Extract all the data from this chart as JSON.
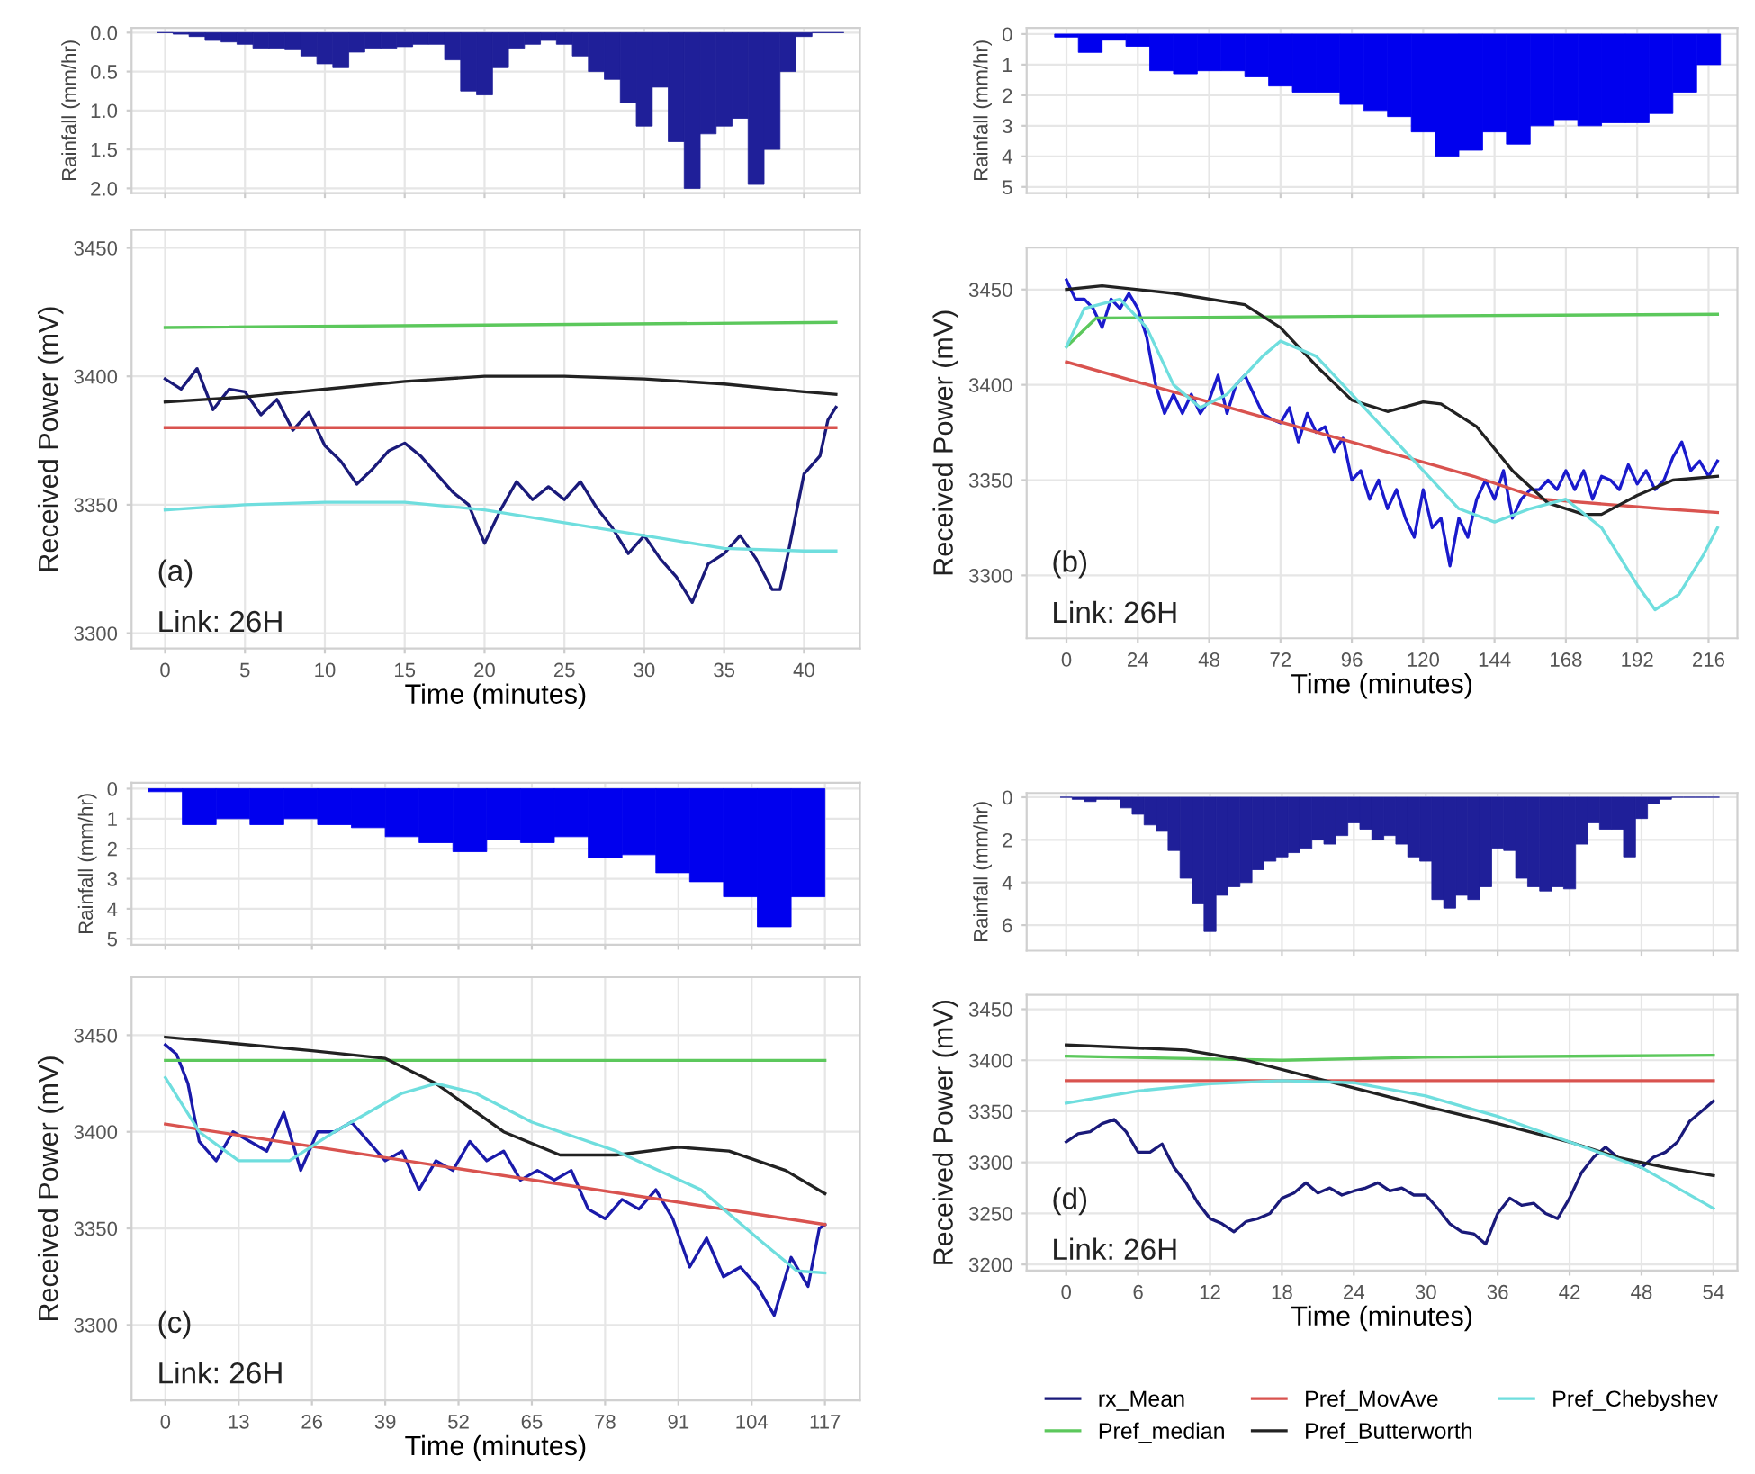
{
  "chart_data": [
    {
      "type": "bar",
      "ylabel": "Rainfall (mm/hr)",
      "x": [
        0,
        1,
        2,
        3,
        4,
        5,
        6,
        7,
        8,
        9,
        10,
        11,
        12,
        13,
        14,
        15,
        16,
        17,
        18,
        19,
        20,
        21,
        22,
        23,
        24,
        25,
        26,
        27,
        28,
        29,
        30,
        31,
        32,
        33,
        34,
        35,
        36,
        37,
        38,
        39,
        40,
        41,
        42
      ],
      "values": [
        0,
        0.02,
        0.05,
        0.1,
        0.12,
        0.15,
        0.2,
        0.2,
        0.22,
        0.3,
        0.4,
        0.45,
        0.25,
        0.2,
        0.2,
        0.18,
        0.15,
        0.15,
        0.35,
        0.75,
        0.8,
        0.45,
        0.2,
        0.15,
        0.1,
        0.15,
        0.3,
        0.5,
        0.6,
        0.9,
        1.2,
        0.7,
        1.4,
        2.0,
        1.3,
        1.2,
        1.1,
        1.95,
        1.5,
        0.5,
        0.05,
        0,
        0
      ],
      "color": "#1f1f99",
      "xlim": [
        -2.1,
        43.5
      ],
      "xticks": [
        0,
        5,
        10,
        15,
        20,
        25,
        30,
        35,
        40
      ],
      "ylim": [
        2.06,
        -0.06
      ],
      "yticks": [
        {
          "value": 0,
          "label": "0.0"
        },
        {
          "value": 0.5,
          "label": "0.5"
        },
        {
          "value": 1,
          "label": "1.0"
        },
        {
          "value": 1.5,
          "label": "1.5"
        },
        {
          "value": 2,
          "label": "2.0"
        }
      ],
      "tick_labels": "y",
      "grid": true
    },
    {
      "type": "line",
      "xlabel": "Time (minutes)",
      "ylabel": "Received Power (mV)",
      "annotations": [
        "(a)",
        "Link: 26H"
      ],
      "xlim": [
        -2.1,
        43.5
      ],
      "xticks": [
        0,
        5,
        10,
        15,
        20,
        25,
        30,
        35,
        40
      ],
      "ylim": [
        3294,
        3457
      ],
      "yticks": [
        3300,
        3350,
        3400,
        3450
      ],
      "grid": true,
      "series": [
        {
          "color": "#1a1a7a",
          "x": [
            0,
            1,
            2,
            3,
            4,
            5,
            6,
            7,
            8,
            9,
            10,
            11,
            12,
            13,
            14,
            15,
            16,
            17,
            18,
            19,
            20,
            21,
            22,
            23,
            24,
            25,
            26,
            27,
            28,
            29,
            30,
            31,
            32,
            33,
            34,
            35,
            36,
            37,
            38,
            38.5,
            39,
            40,
            41,
            41.5,
            42
          ],
          "values": [
            3399,
            3395,
            3403,
            3387,
            3395,
            3394,
            3385,
            3391,
            3379,
            3386,
            3373,
            3367,
            3358,
            3364,
            3371,
            3374,
            3369,
            3362,
            3355,
            3350,
            3335,
            3348,
            3359,
            3352,
            3357,
            3352,
            3359,
            3349,
            3341,
            3331,
            3338,
            3329,
            3322,
            3312,
            3327,
            3331,
            3338,
            3329,
            3317,
            3317,
            3331,
            3362,
            3369,
            3383,
            3388
          ]
        },
        {
          "color": "#5cc85c",
          "x": [
            0,
            42
          ],
          "values": [
            3419,
            3421
          ]
        },
        {
          "color": "#d9534f",
          "x": [
            0,
            42
          ],
          "values": [
            3380,
            3380
          ]
        },
        {
          "color": "#222222",
          "x": [
            0,
            5,
            10,
            15,
            20,
            25,
            30,
            35,
            40,
            42
          ],
          "values": [
            3390,
            3392,
            3395,
            3398,
            3400,
            3400,
            3399,
            3397,
            3394,
            3393
          ]
        },
        {
          "color": "#6fdede",
          "x": [
            0,
            5,
            10,
            15,
            20,
            25,
            30,
            35,
            40,
            42
          ],
          "values": [
            3348,
            3350,
            3351,
            3351,
            3348,
            3343,
            3338,
            3333,
            3332,
            3332
          ]
        }
      ]
    },
    {
      "type": "bar",
      "ylabel": "Rainfall (mm/hr)",
      "x": [
        0,
        8,
        16,
        24,
        32,
        40,
        48,
        56,
        64,
        72,
        80,
        88,
        96,
        104,
        112,
        120,
        128,
        136,
        144,
        152,
        160,
        168,
        176,
        184,
        192,
        200,
        208,
        216
      ],
      "values": [
        0.1,
        0.6,
        0.2,
        0.4,
        1.2,
        1.3,
        1.2,
        1.2,
        1.4,
        1.7,
        1.9,
        1.9,
        2.3,
        2.5,
        2.7,
        3.2,
        4.0,
        3.8,
        3.2,
        3.6,
        3.0,
        2.8,
        3.0,
        2.9,
        2.9,
        2.6,
        1.9,
        1.0
      ],
      "color": "#0000ee",
      "xlim": [
        -13.4,
        225.7
      ],
      "xticks": [
        0,
        24,
        48,
        72,
        96,
        120,
        144,
        168,
        192,
        216
      ],
      "ylim": [
        5.2,
        -0.2
      ],
      "yticks": [
        0,
        1,
        2,
        3,
        4,
        5
      ],
      "tick_labels": "y",
      "grid": true
    },
    {
      "type": "line",
      "xlabel": "Time (minutes)",
      "ylabel": "Received Power (mV)",
      "annotations": [
        "(b)",
        "Link: 26H"
      ],
      "xlim": [
        -13.4,
        225.7
      ],
      "xticks": [
        0,
        24,
        48,
        72,
        96,
        120,
        144,
        168,
        192,
        216
      ],
      "ylim": [
        3267,
        3472
      ],
      "yticks": [
        3300,
        3350,
        3400,
        3450
      ],
      "grid": true,
      "series": [
        {
          "color": "#1a1acc",
          "x": [
            0,
            3,
            6,
            9,
            12,
            15,
            18,
            21,
            24,
            27,
            30,
            33,
            36,
            39,
            42,
            45,
            48,
            51,
            54,
            57,
            60,
            63,
            66,
            69,
            72,
            75,
            78,
            81,
            84,
            87,
            90,
            93,
            96,
            99,
            102,
            105,
            108,
            111,
            114,
            117,
            120,
            123,
            126,
            129,
            132,
            135,
            138,
            141,
            144,
            147,
            150,
            153,
            156,
            159,
            162,
            165,
            168,
            171,
            174,
            177,
            180,
            183,
            186,
            189,
            192,
            195,
            198,
            201,
            204,
            207,
            210,
            213,
            216,
            219
          ],
          "values": [
            3455,
            3445,
            3445,
            3440,
            3430,
            3445,
            3440,
            3448,
            3440,
            3425,
            3400,
            3385,
            3395,
            3385,
            3395,
            3385,
            3392,
            3405,
            3385,
            3400,
            3405,
            3395,
            3385,
            3382,
            3380,
            3388,
            3370,
            3385,
            3375,
            3378,
            3365,
            3372,
            3350,
            3355,
            3340,
            3350,
            3335,
            3345,
            3330,
            3320,
            3345,
            3325,
            3330,
            3305,
            3330,
            3320,
            3340,
            3350,
            3340,
            3355,
            3330,
            3340,
            3345,
            3345,
            3350,
            3345,
            3355,
            3345,
            3355,
            3340,
            3352,
            3350,
            3345,
            3358,
            3348,
            3355,
            3345,
            3350,
            3362,
            3370,
            3355,
            3360,
            3352,
            3360
          ]
        },
        {
          "color": "#5cc85c",
          "x": [
            0,
            10,
            100,
            219
          ],
          "values": [
            3420,
            3435,
            3436,
            3437
          ]
        },
        {
          "color": "#d9534f",
          "x": [
            0,
            137,
            160,
            200,
            219
          ],
          "values": [
            3412,
            3352,
            3340,
            3335,
            3333
          ]
        },
        {
          "color": "#222222",
          "x": [
            0,
            12,
            36,
            60,
            72,
            84,
            96,
            108,
            120,
            126,
            138,
            150,
            162,
            174,
            180,
            192,
            204,
            219
          ],
          "values": [
            3450,
            3452,
            3448,
            3442,
            3430,
            3410,
            3392,
            3386,
            3391,
            3390,
            3378,
            3355,
            3338,
            3332,
            3332,
            3342,
            3350,
            3352
          ]
        },
        {
          "color": "#6fdede",
          "x": [
            0,
            6,
            18,
            27,
            36,
            45,
            54,
            66,
            72,
            84,
            96,
            108,
            120,
            132,
            144,
            156,
            168,
            180,
            192,
            198,
            206,
            214,
            219
          ],
          "values": [
            3420,
            3440,
            3445,
            3430,
            3400,
            3388,
            3395,
            3415,
            3423,
            3415,
            3395,
            3375,
            3355,
            3335,
            3328,
            3335,
            3340,
            3325,
            3295,
            3282,
            3290,
            3310,
            3325
          ]
        }
      ]
    },
    {
      "type": "bar",
      "ylabel": "Rainfall (mm/hr)",
      "x": [
        0,
        6,
        12,
        18,
        24,
        30,
        36,
        42,
        48,
        54,
        60,
        66,
        72,
        78,
        84,
        90,
        96,
        102,
        108,
        114
      ],
      "values": [
        0.1,
        1.2,
        1.0,
        1.2,
        1.0,
        1.2,
        1.3,
        1.6,
        1.8,
        2.1,
        1.7,
        1.8,
        1.6,
        2.3,
        2.2,
        2.8,
        3.1,
        3.6,
        4.6,
        3.6
      ],
      "color": "#0000ee",
      "xlim": [
        -6,
        123.2
      ],
      "xticks": [
        0,
        13,
        26,
        39,
        52,
        65,
        78,
        91,
        104,
        117
      ],
      "ylim": [
        5.2,
        -0.2
      ],
      "yticks": [
        0,
        1,
        2,
        3,
        4,
        5
      ],
      "tick_labels": "y",
      "grid": true
    },
    {
      "type": "line",
      "xlabel": "Time (minutes)",
      "ylabel": "Received Power (mV)",
      "annotations": [
        "(c)",
        "Link: 26H"
      ],
      "xlim": [
        -6,
        123.2
      ],
      "xticks": [
        0,
        13,
        26,
        39,
        52,
        65,
        78,
        91,
        104,
        117
      ],
      "ylim": [
        3261,
        3480
      ],
      "yticks": [
        3300,
        3350,
        3400,
        3450
      ],
      "grid": true,
      "series": [
        {
          "color": "#1a1aaa",
          "x": [
            0,
            2,
            4,
            6,
            9,
            12,
            15,
            18,
            21,
            24,
            27,
            30,
            33,
            36,
            39,
            42,
            45,
            48,
            51,
            54,
            57,
            60,
            63,
            66,
            69,
            72,
            75,
            78,
            81,
            84,
            87,
            90,
            93,
            96,
            99,
            102,
            105,
            108,
            111,
            114,
            116,
            117
          ],
          "values": [
            3445,
            3440,
            3425,
            3395,
            3385,
            3400,
            3395,
            3390,
            3410,
            3380,
            3400,
            3400,
            3405,
            3395,
            3385,
            3390,
            3370,
            3385,
            3380,
            3395,
            3385,
            3390,
            3375,
            3380,
            3375,
            3380,
            3360,
            3355,
            3365,
            3360,
            3370,
            3355,
            3330,
            3345,
            3325,
            3330,
            3320,
            3305,
            3335,
            3320,
            3350,
            3352
          ]
        },
        {
          "color": "#5cc85c",
          "x": [
            0,
            117
          ],
          "values": [
            3437,
            3437
          ]
        },
        {
          "color": "#d9534f",
          "x": [
            0,
            117
          ],
          "values": [
            3404,
            3352
          ]
        },
        {
          "color": "#222222",
          "x": [
            0,
            26,
            39,
            48,
            60,
            70,
            80,
            91,
            100,
            110,
            117
          ],
          "values": [
            3449,
            3442,
            3438,
            3425,
            3400,
            3388,
            3388,
            3392,
            3390,
            3380,
            3368
          ]
        },
        {
          "color": "#6fdede",
          "x": [
            0,
            6,
            13,
            22,
            30,
            42,
            48,
            55,
            65,
            80,
            95,
            105,
            112,
            117
          ],
          "values": [
            3428,
            3400,
            3385,
            3385,
            3400,
            3420,
            3425,
            3420,
            3405,
            3390,
            3370,
            3345,
            3328,
            3327
          ]
        }
      ]
    },
    {
      "type": "bar",
      "ylabel": "Rainfall (mm/hr)",
      "x": [
        0,
        1,
        2,
        3,
        4,
        5,
        6,
        7,
        8,
        9,
        10,
        11,
        12,
        13,
        14,
        15,
        16,
        17,
        18,
        19,
        20,
        21,
        22,
        23,
        24,
        25,
        26,
        27,
        28,
        29,
        30,
        31,
        32,
        33,
        34,
        35,
        36,
        37,
        38,
        39,
        40,
        41,
        42,
        43,
        44,
        45,
        46,
        47,
        48,
        49,
        50,
        51,
        52,
        53,
        54
      ],
      "values": [
        0,
        0.1,
        0.2,
        0.1,
        0.1,
        0.5,
        0.8,
        1.3,
        1.6,
        2.5,
        3.8,
        5.0,
        6.3,
        4.6,
        4.2,
        4.0,
        3.4,
        3.0,
        2.8,
        2.6,
        2.4,
        2.0,
        2.2,
        1.8,
        1.2,
        1.5,
        2.0,
        1.8,
        2.2,
        2.8,
        3.0,
        4.8,
        5.2,
        4.6,
        4.8,
        4.2,
        2.4,
        2.5,
        3.8,
        4.2,
        4.4,
        4.2,
        4.3,
        2.2,
        1.2,
        1.5,
        1.5,
        2.8,
        1.0,
        0.3,
        0.1,
        0,
        0,
        0,
        0
      ],
      "color": "#1f1f99",
      "xlim": [
        -3.3,
        56
      ],
      "xticks": [
        0,
        6,
        12,
        18,
        24,
        30,
        36,
        42,
        48,
        54
      ],
      "ylim": [
        7.2,
        -0.2
      ],
      "yticks": [
        0,
        2,
        4,
        6
      ],
      "tick_labels": "y",
      "grid": true
    },
    {
      "type": "line",
      "xlabel": "Time (minutes)",
      "ylabel": "Received Power (mV)",
      "annotations": [
        "(d)",
        "Link: 26H"
      ],
      "xlim": [
        -3.3,
        56
      ],
      "xticks": [
        0,
        6,
        12,
        18,
        24,
        30,
        36,
        42,
        48,
        54
      ],
      "ylim": [
        3194,
        3464
      ],
      "yticks": [
        3200,
        3250,
        3300,
        3350,
        3400,
        3450
      ],
      "grid": true,
      "legend": "bottom",
      "series": [
        {
          "name": "rx_Mean",
          "color": "#1a1a7a",
          "x": [
            0,
            1,
            2,
            3,
            4,
            5,
            6,
            7,
            8,
            9,
            10,
            11,
            12,
            13,
            14,
            15,
            16,
            17,
            18,
            19,
            20,
            21,
            22,
            23,
            24,
            25,
            26,
            27,
            28,
            29,
            30,
            31,
            32,
            33,
            34,
            35,
            36,
            37,
            38,
            39,
            40,
            41,
            42,
            43,
            44,
            45,
            46,
            47,
            48,
            49,
            50,
            51,
            52,
            53,
            54
          ],
          "values": [
            3320,
            3328,
            3330,
            3338,
            3342,
            3330,
            3310,
            3310,
            3318,
            3295,
            3280,
            3260,
            3245,
            3240,
            3232,
            3242,
            3245,
            3250,
            3265,
            3270,
            3280,
            3270,
            3275,
            3268,
            3272,
            3275,
            3280,
            3272,
            3275,
            3268,
            3268,
            3255,
            3240,
            3232,
            3230,
            3220,
            3250,
            3265,
            3258,
            3260,
            3250,
            3245,
            3265,
            3290,
            3305,
            3315,
            3305,
            3300,
            3295,
            3305,
            3310,
            3320,
            3340,
            3350,
            3360
          ]
        },
        {
          "name": "Pref_median",
          "color": "#5cc85c",
          "x": [
            0,
            18,
            30,
            54
          ],
          "values": [
            3404,
            3400,
            3403,
            3405
          ]
        },
        {
          "name": "Pref_MovAve",
          "color": "#d9534f",
          "x": [
            0,
            54
          ],
          "values": [
            3380,
            3380
          ]
        },
        {
          "name": "Pref_Butterworth",
          "color": "#222222",
          "x": [
            0,
            10,
            15,
            20,
            25,
            30,
            36,
            42,
            46,
            50,
            54
          ],
          "values": [
            3415,
            3410,
            3400,
            3385,
            3370,
            3355,
            3338,
            3320,
            3305,
            3295,
            3287
          ]
        },
        {
          "name": "Pref_Chebyshev",
          "color": "#6fdede",
          "x": [
            0,
            6,
            12,
            18,
            24,
            30,
            36,
            42,
            48,
            54
          ],
          "values": [
            3358,
            3370,
            3377,
            3380,
            3378,
            3365,
            3345,
            3320,
            3295,
            3255
          ]
        }
      ]
    }
  ]
}
